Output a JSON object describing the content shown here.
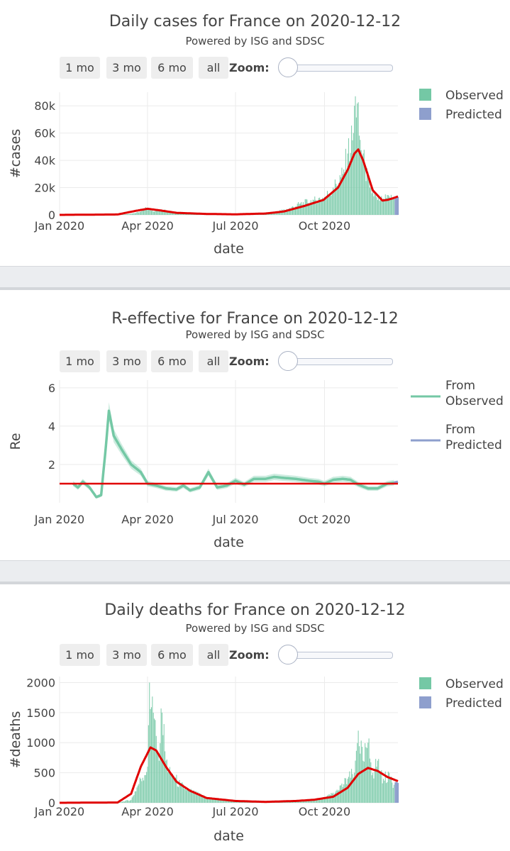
{
  "panels": [
    {
      "title": "Daily cases for France on 2020-12-12",
      "subtitle": "Powered by ISG and SDSC",
      "buttons": [
        "1 mo",
        "3 mo",
        "6 mo",
        "all"
      ],
      "zoom_label": "Zoom:"
    },
    {
      "title": "R-effective for France on 2020-12-12",
      "subtitle": "Powered by ISG and SDSC",
      "buttons": [
        "1 mo",
        "3 mo",
        "6 mo",
        "all"
      ],
      "zoom_label": "Zoom:"
    },
    {
      "title": "Daily deaths for France on 2020-12-12",
      "subtitle": "Powered by ISG and SDSC",
      "buttons": [
        "1 mo",
        "3 mo",
        "6 mo",
        "all"
      ],
      "zoom_label": "Zoom:"
    }
  ],
  "colors": {
    "observed": "#74c8a5",
    "predicted": "#8e9fcd",
    "trend": "#e00000",
    "band": "#ebedf0"
  },
  "chart_data": [
    {
      "type": "bar",
      "title": "Daily cases for France on 2020-12-12",
      "subtitle": "Powered by ISG and SDSC",
      "xlabel": "date",
      "ylabel": "#cases",
      "x_range": [
        "2020-01-01",
        "2020-12-16"
      ],
      "ylim": [
        0,
        90000
      ],
      "yticks": [
        0,
        20000,
        40000,
        60000,
        80000
      ],
      "ytick_labels": [
        "0",
        "20k",
        "40k",
        "60k",
        "80k"
      ],
      "xticks": [
        "2020-01-01",
        "2020-04-01",
        "2020-07-01",
        "2020-10-01"
      ],
      "xtick_labels": [
        "Jan 2020",
        "Apr 2020",
        "Jul 2020",
        "Oct 2020"
      ],
      "legend": [
        "Observed",
        "Predicted"
      ],
      "legend_position": "top-right",
      "grid": true,
      "series": [
        {
          "name": "Observed",
          "kind": "bar",
          "points": [
            [
              "2020-01-01",
              0
            ],
            [
              "2020-02-15",
              100
            ],
            [
              "2020-03-10",
              500
            ],
            [
              "2020-03-20",
              1500
            ],
            [
              "2020-03-31",
              5000
            ],
            [
              "2020-04-05",
              3000
            ],
            [
              "2020-04-15",
              4000
            ],
            [
              "2020-04-25",
              2000
            ],
            [
              "2020-05-10",
              700
            ],
            [
              "2020-06-01",
              400
            ],
            [
              "2020-06-20",
              400
            ],
            [
              "2020-07-10",
              500
            ],
            [
              "2020-07-25",
              900
            ],
            [
              "2020-08-10",
              2000
            ],
            [
              "2020-08-25",
              4500
            ],
            [
              "2020-09-05",
              8000
            ],
            [
              "2020-09-20",
              11000
            ],
            [
              "2020-10-01",
              13000
            ],
            [
              "2020-10-10",
              20000
            ],
            [
              "2020-10-20",
              30000
            ],
            [
              "2020-10-25",
              45000
            ],
            [
              "2020-10-31",
              60000
            ],
            [
              "2020-11-02",
              87000
            ],
            [
              "2020-11-07",
              55000
            ],
            [
              "2020-11-12",
              35000
            ],
            [
              "2020-11-17",
              20000
            ],
            [
              "2020-11-25",
              11000
            ],
            [
              "2020-12-01",
              12000
            ],
            [
              "2020-12-08",
              12500
            ],
            [
              "2020-12-12",
              13000
            ]
          ]
        },
        {
          "name": "Predicted",
          "kind": "bar",
          "points": [
            [
              "2020-12-13",
              12500
            ],
            [
              "2020-12-14",
              12700
            ],
            [
              "2020-12-15",
              13000
            ],
            [
              "2020-12-16",
              13200
            ]
          ]
        },
        {
          "name": "trend",
          "kind": "line",
          "points": [
            [
              "2020-01-01",
              0
            ],
            [
              "2020-03-01",
              300
            ],
            [
              "2020-03-20",
              3000
            ],
            [
              "2020-04-01",
              4500
            ],
            [
              "2020-04-15",
              3200
            ],
            [
              "2020-05-01",
              1500
            ],
            [
              "2020-06-01",
              700
            ],
            [
              "2020-07-01",
              400
            ],
            [
              "2020-08-01",
              1000
            ],
            [
              "2020-08-20",
              2500
            ],
            [
              "2020-09-10",
              6500
            ],
            [
              "2020-09-30",
              11000
            ],
            [
              "2020-10-15",
              20000
            ],
            [
              "2020-10-25",
              33000
            ],
            [
              "2020-11-01",
              45000
            ],
            [
              "2020-11-05",
              48000
            ],
            [
              "2020-11-10",
              40000
            ],
            [
              "2020-11-20",
              18000
            ],
            [
              "2020-11-30",
              10500
            ],
            [
              "2020-12-05",
              11000
            ],
            [
              "2020-12-10",
              12000
            ],
            [
              "2020-12-16",
              13500
            ]
          ]
        }
      ]
    },
    {
      "type": "line",
      "title": "R-effective for France on 2020-12-12",
      "subtitle": "Powered by ISG and SDSC",
      "xlabel": "date",
      "ylabel": "Re",
      "x_range": [
        "2020-01-01",
        "2020-12-16"
      ],
      "ylim": [
        0,
        6.4
      ],
      "yticks": [
        2,
        4,
        6
      ],
      "ytick_labels": [
        "2",
        "4",
        "6"
      ],
      "xticks": [
        "2020-01-01",
        "2020-04-01",
        "2020-07-01",
        "2020-10-01"
      ],
      "xtick_labels": [
        "Jan 2020",
        "Apr 2020",
        "Jul 2020",
        "Oct 2020"
      ],
      "legend": [
        "From\nObserved",
        "From\nPredicted"
      ],
      "legend_position": "top-right",
      "grid": true,
      "reference_line": 1.0,
      "series": [
        {
          "name": "From Observed",
          "points": [
            [
              "2020-01-15",
              1.0
            ],
            [
              "2020-01-20",
              0.8
            ],
            [
              "2020-01-25",
              1.1
            ],
            [
              "2020-02-01",
              0.8
            ],
            [
              "2020-02-08",
              0.3
            ],
            [
              "2020-02-13",
              0.4
            ],
            [
              "2020-02-18",
              3.0
            ],
            [
              "2020-02-21",
              4.8
            ],
            [
              "2020-02-26",
              3.5
            ],
            [
              "2020-03-05",
              2.8
            ],
            [
              "2020-03-15",
              2.0
            ],
            [
              "2020-03-25",
              1.6
            ],
            [
              "2020-04-01",
              1.0
            ],
            [
              "2020-04-10",
              0.9
            ],
            [
              "2020-04-20",
              0.75
            ],
            [
              "2020-05-01",
              0.7
            ],
            [
              "2020-05-08",
              0.9
            ],
            [
              "2020-05-15",
              0.65
            ],
            [
              "2020-05-25",
              0.8
            ],
            [
              "2020-06-03",
              1.6
            ],
            [
              "2020-06-12",
              0.8
            ],
            [
              "2020-06-22",
              0.9
            ],
            [
              "2020-07-01",
              1.15
            ],
            [
              "2020-07-10",
              0.95
            ],
            [
              "2020-07-20",
              1.25
            ],
            [
              "2020-08-01",
              1.25
            ],
            [
              "2020-08-10",
              1.35
            ],
            [
              "2020-08-20",
              1.3
            ],
            [
              "2020-09-01",
              1.25
            ],
            [
              "2020-09-15",
              1.15
            ],
            [
              "2020-09-25",
              1.1
            ],
            [
              "2020-10-01",
              1.0
            ],
            [
              "2020-10-10",
              1.2
            ],
            [
              "2020-10-20",
              1.25
            ],
            [
              "2020-10-28",
              1.2
            ],
            [
              "2020-11-05",
              0.95
            ],
            [
              "2020-11-15",
              0.75
            ],
            [
              "2020-11-25",
              0.75
            ],
            [
              "2020-12-05",
              1.0
            ],
            [
              "2020-12-12",
              1.05
            ]
          ]
        },
        {
          "name": "From Predicted",
          "points": [
            [
              "2020-12-12",
              1.05
            ],
            [
              "2020-12-16",
              1.1
            ]
          ]
        }
      ]
    },
    {
      "type": "bar",
      "title": "Daily deaths for France on 2020-12-12",
      "subtitle": "Powered by ISG and SDSC",
      "xlabel": "date",
      "ylabel": "#deaths",
      "x_range": [
        "2020-01-01",
        "2020-12-16"
      ],
      "ylim": [
        0,
        2100
      ],
      "yticks": [
        0,
        500,
        1000,
        1500,
        2000
      ],
      "ytick_labels": [
        "0",
        "500",
        "1000",
        "1500",
        "2000"
      ],
      "xticks": [
        "2020-01-01",
        "2020-04-01",
        "2020-07-01",
        "2020-10-01"
      ],
      "xtick_labels": [
        "Jan 2020",
        "Apr 2020",
        "Jul 2020",
        "Oct 2020"
      ],
      "legend": [
        "Observed",
        "Predicted"
      ],
      "legend_position": "top-right",
      "grid": true,
      "series": [
        {
          "name": "Observed",
          "kind": "bar",
          "points": [
            [
              "2020-01-01",
              0
            ],
            [
              "2020-03-01",
              5
            ],
            [
              "2020-03-15",
              50
            ],
            [
              "2020-03-25",
              400
            ],
            [
              "2020-04-01",
              600
            ],
            [
              "2020-04-03",
              2000
            ],
            [
              "2020-04-08",
              1400
            ],
            [
              "2020-04-12",
              800
            ],
            [
              "2020-04-16",
              1500
            ],
            [
              "2020-04-20",
              700
            ],
            [
              "2020-04-25",
              500
            ],
            [
              "2020-05-05",
              300
            ],
            [
              "2020-05-15",
              200
            ],
            [
              "2020-05-30",
              100
            ],
            [
              "2020-06-15",
              50
            ],
            [
              "2020-07-01",
              20
            ],
            [
              "2020-08-01",
              15
            ],
            [
              "2020-09-01",
              30
            ],
            [
              "2020-09-20",
              50
            ],
            [
              "2020-10-01",
              80
            ],
            [
              "2020-10-15",
              200
            ],
            [
              "2020-10-25",
              400
            ],
            [
              "2020-11-01",
              500
            ],
            [
              "2020-11-05",
              1200
            ],
            [
              "2020-11-10",
              700
            ],
            [
              "2020-11-15",
              1000
            ],
            [
              "2020-11-20",
              500
            ],
            [
              "2020-11-25",
              700
            ],
            [
              "2020-12-01",
              400
            ],
            [
              "2020-12-07",
              500
            ],
            [
              "2020-12-12",
              300
            ]
          ]
        },
        {
          "name": "Predicted",
          "kind": "bar",
          "points": [
            [
              "2020-12-13",
              340
            ],
            [
              "2020-12-14",
              350
            ],
            [
              "2020-12-15",
              340
            ],
            [
              "2020-12-16",
              330
            ]
          ]
        },
        {
          "name": "trend",
          "kind": "line",
          "points": [
            [
              "2020-01-01",
              0
            ],
            [
              "2020-03-01",
              5
            ],
            [
              "2020-03-15",
              150
            ],
            [
              "2020-03-25",
              600
            ],
            [
              "2020-04-04",
              920
            ],
            [
              "2020-04-10",
              870
            ],
            [
              "2020-04-20",
              600
            ],
            [
              "2020-05-01",
              350
            ],
            [
              "2020-05-15",
              200
            ],
            [
              "2020-06-01",
              80
            ],
            [
              "2020-07-01",
              30
            ],
            [
              "2020-08-01",
              15
            ],
            [
              "2020-09-01",
              30
            ],
            [
              "2020-09-20",
              50
            ],
            [
              "2020-10-10",
              100
            ],
            [
              "2020-10-25",
              250
            ],
            [
              "2020-11-05",
              480
            ],
            [
              "2020-11-15",
              580
            ],
            [
              "2020-11-25",
              530
            ],
            [
              "2020-12-05",
              430
            ],
            [
              "2020-12-16",
              360
            ]
          ]
        }
      ]
    }
  ]
}
